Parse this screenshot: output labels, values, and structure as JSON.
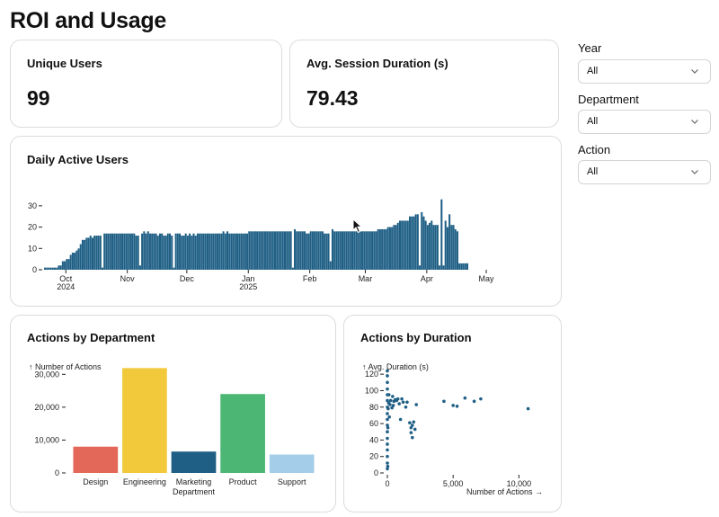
{
  "page": {
    "title": "ROI and Usage"
  },
  "kpis": {
    "unique_users": {
      "label": "Unique Users",
      "value": "99"
    },
    "avg_session": {
      "label": "Avg. Session Duration (s)",
      "value": "79.43"
    }
  },
  "filters": [
    {
      "label": "Year",
      "value": "All"
    },
    {
      "label": "Department",
      "value": "All"
    },
    {
      "label": "Action",
      "value": "All"
    }
  ],
  "dau_chart": {
    "title": "Daily Active Users",
    "y_ticks": [
      "0",
      "10",
      "20",
      "30"
    ],
    "x_ticks": [
      {
        "month": "Oct",
        "year": "2024"
      },
      {
        "month": "Nov",
        "year": ""
      },
      {
        "month": "Dec",
        "year": ""
      },
      {
        "month": "Jan",
        "year": "2025"
      },
      {
        "month": "Feb",
        "year": ""
      },
      {
        "month": "Mar",
        "year": ""
      },
      {
        "month": "Apr",
        "year": ""
      },
      {
        "month": "May",
        "year": ""
      }
    ]
  },
  "dept_chart": {
    "title": "Actions by Department",
    "y_axis_label": "↑ Number of Actions",
    "y_ticks": [
      "0",
      "10,000",
      "20,000",
      "30,000"
    ]
  },
  "scatter_chart": {
    "title": "Actions by Duration",
    "y_axis_label": "↑ Avg. Duration (s)",
    "x_axis_label": "Number of Actions →",
    "y_ticks": [
      "0",
      "20",
      "40",
      "60",
      "80",
      "100",
      "120"
    ],
    "x_ticks": [
      "0",
      "5,000",
      "10,000"
    ]
  },
  "chart_data": [
    {
      "type": "bar",
      "title": "Daily Active Users",
      "color": "#1f5f85",
      "ylim": [
        0,
        35
      ],
      "xlim": [
        "2024-09-20",
        "2025-05-25"
      ],
      "series": [
        {
          "start": "2024-09-20",
          "values": [
            1,
            1,
            1,
            1,
            1,
            1,
            1,
            2,
            2,
            4,
            4,
            5,
            5,
            7,
            8,
            8,
            9,
            10,
            12,
            14,
            14,
            15,
            15,
            16,
            15,
            16,
            16,
            16,
            16,
            1,
            17,
            17,
            17,
            17,
            17,
            17,
            17,
            17,
            17,
            17,
            17,
            17,
            17,
            17,
            17,
            17,
            16,
            16,
            2,
            17,
            18,
            17,
            18,
            17,
            17,
            17,
            17,
            16,
            17,
            17,
            16,
            16,
            17,
            17,
            16,
            1,
            17,
            17,
            17,
            16,
            16,
            17,
            16,
            17,
            16,
            17,
            16,
            17,
            17,
            17,
            17,
            17,
            17,
            17,
            17,
            17,
            17,
            17,
            17,
            17,
            18,
            17,
            18,
            17,
            17,
            17,
            17,
            17,
            17,
            17,
            17,
            17,
            17,
            18,
            18,
            18,
            18,
            18,
            18,
            18,
            18,
            18,
            18,
            18,
            18,
            18,
            18,
            18,
            18,
            18,
            18,
            18,
            18,
            18,
            18,
            1,
            19,
            18,
            18,
            18,
            18,
            18,
            17,
            17,
            18,
            18,
            18,
            18,
            18,
            18,
            18,
            17,
            17,
            17,
            4,
            19,
            18,
            18,
            18,
            18,
            18,
            18,
            18,
            18,
            18,
            18,
            18,
            18,
            18,
            18,
            18,
            18,
            18,
            18,
            18,
            18,
            18,
            18,
            19,
            19,
            19,
            19,
            19,
            20,
            20,
            20,
            21,
            21,
            22,
            23,
            23,
            23,
            23,
            23,
            25,
            25,
            25,
            26,
            26,
            2,
            27,
            25,
            23,
            21,
            22,
            23,
            21,
            21,
            21,
            2,
            33,
            2,
            23,
            20,
            26,
            21,
            21,
            19,
            18,
            3,
            3,
            3,
            3,
            3
          ]
        }
      ]
    },
    {
      "type": "bar",
      "title": "Actions by Department",
      "ylabel": "↑ Number of Actions",
      "ylim": [
        0,
        32000
      ],
      "categories": [
        "Design",
        "Engineering",
        "Marketing Department",
        "Product",
        "Support"
      ],
      "values": [
        8000,
        31900,
        6500,
        24000,
        5600
      ],
      "colors": [
        "#e4685a",
        "#f2c93b",
        "#1f5f85",
        "#4cb674",
        "#a3cde9"
      ]
    },
    {
      "type": "scatter",
      "title": "Actions by Duration",
      "xlabel": "Number of Actions →",
      "ylabel": "↑ Avg. Duration (s)",
      "xlim": [
        0,
        11000
      ],
      "ylim": [
        0,
        130
      ],
      "color": "#1f5f85",
      "points": [
        [
          0,
          5
        ],
        [
          0,
          12
        ],
        [
          0,
          20
        ],
        [
          0,
          28
        ],
        [
          0,
          35
        ],
        [
          0,
          42
        ],
        [
          0,
          50
        ],
        [
          0,
          58
        ],
        [
          0,
          65
        ],
        [
          0,
          72
        ],
        [
          0,
          80
        ],
        [
          0,
          88
        ],
        [
          0,
          95
        ],
        [
          0,
          102
        ],
        [
          0,
          110
        ],
        [
          0,
          118
        ],
        [
          0,
          124
        ],
        [
          30,
          8
        ],
        [
          40,
          55
        ],
        [
          60,
          78
        ],
        [
          100,
          85
        ],
        [
          120,
          95
        ],
        [
          150,
          68
        ],
        [
          200,
          83
        ],
        [
          250,
          88
        ],
        [
          350,
          79
        ],
        [
          400,
          93
        ],
        [
          450,
          82
        ],
        [
          500,
          87
        ],
        [
          600,
          89
        ],
        [
          700,
          88
        ],
        [
          800,
          90
        ],
        [
          900,
          84
        ],
        [
          1000,
          65
        ],
        [
          1100,
          90
        ],
        [
          1200,
          86
        ],
        [
          1400,
          80
        ],
        [
          1500,
          86
        ],
        [
          1700,
          61
        ],
        [
          1800,
          55
        ],
        [
          1800,
          49
        ],
        [
          1900,
          43
        ],
        [
          1900,
          58
        ],
        [
          2000,
          62
        ],
        [
          2100,
          53
        ],
        [
          2200,
          83
        ],
        [
          4300,
          87
        ],
        [
          5000,
          82
        ],
        [
          5300,
          81
        ],
        [
          5900,
          91
        ],
        [
          6600,
          87
        ],
        [
          7100,
          90
        ],
        [
          10700,
          78
        ]
      ]
    }
  ]
}
